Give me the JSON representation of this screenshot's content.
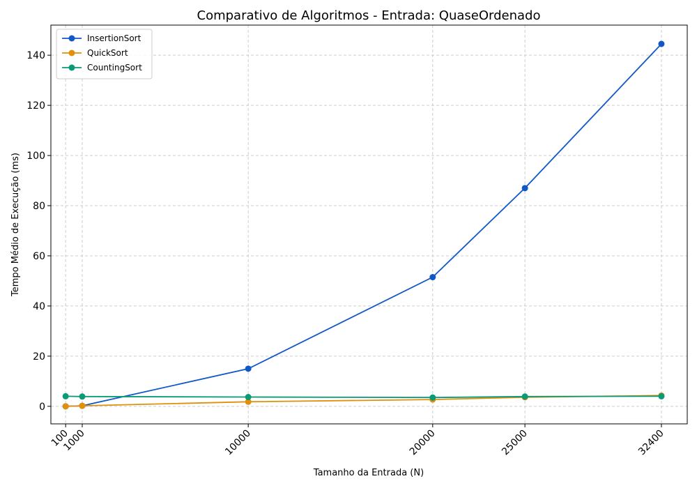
{
  "chart_data": {
    "type": "line",
    "title": "Comparativo de Algoritmos - Entrada: QuaseOrdenado",
    "xlabel": "Tamanho da Entrada (N)",
    "ylabel": "Tempo Médio de Execução (ms)",
    "x": [
      100,
      1000,
      10000,
      20000,
      25000,
      32400
    ],
    "x_tick_labels": [
      "100",
      "1000",
      "10000",
      "20000",
      "25000",
      "32400"
    ],
    "xlim": [
      -700,
      33800
    ],
    "ylim": [
      -7,
      152
    ],
    "y_ticks": [
      0,
      20,
      40,
      60,
      80,
      100,
      120,
      140
    ],
    "grid": true,
    "legend_position": "top-left",
    "series": [
      {
        "name": "InsertionSort",
        "color": "#1058c8",
        "values": [
          0.0,
          0.2,
          15.0,
          51.5,
          87.0,
          144.5
        ]
      },
      {
        "name": "QuickSort",
        "color": "#e0900a",
        "values": [
          0.0,
          0.2,
          1.8,
          2.7,
          3.6,
          4.3
        ]
      },
      {
        "name": "CountingSort",
        "color": "#0a9a78",
        "values": [
          4.0,
          3.9,
          3.7,
          3.5,
          3.9,
          4.0
        ]
      }
    ]
  }
}
